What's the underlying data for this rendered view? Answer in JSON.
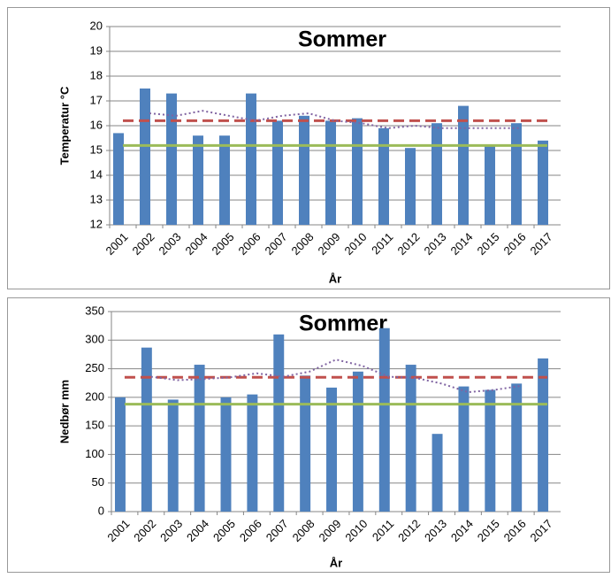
{
  "chart_data": [
    {
      "type": "bar",
      "title": "Sommer",
      "y_label": "Temperatur °C",
      "x_label": "År",
      "categories": [
        "2001",
        "2002",
        "2003",
        "2004",
        "2005",
        "2006",
        "2007",
        "2008",
        "2009",
        "2010",
        "2011",
        "2012",
        "2013",
        "2014",
        "2015",
        "2016",
        "2017"
      ],
      "values": [
        15.7,
        17.5,
        17.3,
        15.6,
        15.6,
        17.3,
        16.2,
        16.4,
        16.2,
        16.3,
        15.9,
        15.1,
        16.1,
        16.8,
        15.2,
        16.1,
        15.4
      ],
      "color": "#4f81bd",
      "lines": [
        {
          "color": "#c0504d",
          "dash": "dashed",
          "values": [
            16.2,
            16.2,
            16.2,
            16.2,
            16.2,
            16.2,
            16.2,
            16.2,
            16.2,
            16.2,
            16.2,
            16.2,
            16.2,
            16.2,
            16.2,
            16.2,
            16.2
          ]
        },
        {
          "color": "#9bbb59",
          "dash": "solid",
          "values": [
            15.2,
            15.2,
            15.2,
            15.2,
            15.2,
            15.2,
            15.2,
            15.2,
            15.2,
            15.2,
            15.2,
            15.2,
            15.2,
            15.2,
            15.2,
            15.2,
            15.2
          ]
        },
        {
          "color": "#8064a2",
          "dash": "dotted",
          "values": [
            null,
            16.5,
            16.4,
            16.6,
            16.4,
            16.2,
            16.4,
            16.5,
            16.2,
            16.1,
            15.9,
            16.0,
            15.9,
            15.9,
            15.9,
            15.9,
            null
          ]
        }
      ],
      "ylim": [
        12,
        20
      ],
      "yticks": [
        12,
        13,
        14,
        15,
        16,
        17,
        18,
        19,
        20
      ],
      "grid": true
    },
    {
      "type": "bar",
      "title": "Sommer",
      "y_label": "Nedbør mm",
      "x_label": "År",
      "categories": [
        "2001",
        "2002",
        "2003",
        "2004",
        "2005",
        "2006",
        "2007",
        "2008",
        "2009",
        "2010",
        "2011",
        "2012",
        "2013",
        "2014",
        "2015",
        "2016",
        "2017"
      ],
      "values": [
        200,
        287,
        196,
        257,
        200,
        205,
        310,
        238,
        217,
        245,
        321,
        257,
        136,
        219,
        213,
        224,
        268
      ],
      "color": "#4f81bd",
      "lines": [
        {
          "color": "#c0504d",
          "dash": "dashed",
          "values": [
            235,
            235,
            235,
            235,
            235,
            235,
            235,
            235,
            235,
            235,
            235,
            235,
            235,
            235,
            235,
            235,
            235
          ]
        },
        {
          "color": "#9bbb59",
          "dash": "solid",
          "values": [
            188,
            188,
            188,
            188,
            188,
            188,
            188,
            188,
            188,
            188,
            188,
            188,
            188,
            188,
            188,
            188,
            188
          ]
        },
        {
          "color": "#8064a2",
          "dash": "dotted",
          "values": [
            null,
            236,
            230,
            232,
            235,
            242,
            236,
            245,
            266,
            255,
            236,
            234,
            224,
            209,
            213,
            220,
            null
          ]
        }
      ],
      "ylim": [
        0,
        350
      ],
      "yticks": [
        0,
        50,
        100,
        150,
        200,
        250,
        300,
        350
      ],
      "grid": true
    }
  ]
}
